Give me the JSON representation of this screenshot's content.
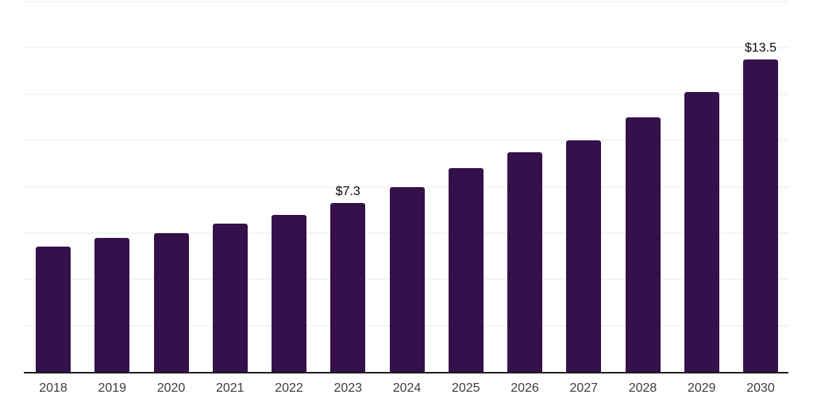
{
  "chart_data": {
    "type": "bar",
    "title": "",
    "xlabel": "",
    "ylabel": "",
    "categories": [
      "2018",
      "2019",
      "2020",
      "2021",
      "2022",
      "2023",
      "2024",
      "2025",
      "2026",
      "2027",
      "2028",
      "2029",
      "2030"
    ],
    "values": [
      5.4,
      5.8,
      6.0,
      6.4,
      6.8,
      7.3,
      8.0,
      8.8,
      9.5,
      10.0,
      11.0,
      12.1,
      13.5
    ],
    "value_labels": [
      null,
      null,
      null,
      null,
      null,
      "$7.3",
      null,
      null,
      null,
      null,
      null,
      null,
      "$13.5"
    ],
    "ylim": [
      0,
      16
    ],
    "gridline_step": 2,
    "grid": true,
    "y_tick_labels_visible": false,
    "legend": null,
    "colors": {
      "bar": "#35114b",
      "axis_line": "#1f1f1f",
      "gridline": "#f4f4f4",
      "tick_label": "#3d3d3d",
      "value_label": "#0a0a0a"
    }
  }
}
